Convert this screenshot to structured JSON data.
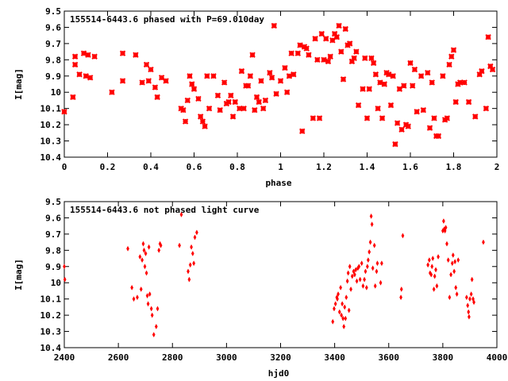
{
  "chart_data": [
    {
      "type": "scatter",
      "title": "155514-6443.6 phased with P=69.010day",
      "xlabel": "phase",
      "ylabel": "I[mag]",
      "xlim": [
        0,
        2
      ],
      "ylim": [
        9.5,
        10.4
      ],
      "y_inverted": true,
      "grid": false,
      "marker_color": "#ff0000",
      "xticks": [
        "0",
        "0.2",
        "0.4",
        "0.6",
        "0.8",
        "1",
        "1.2",
        "1.4",
        "1.6",
        "1.8",
        "2"
      ],
      "yticks": [
        "9.5",
        "9.6",
        "9.7",
        "9.8",
        "9.9",
        "10",
        "10.1",
        "10.2",
        "10.3",
        "10.4"
      ],
      "points": [
        [
          0.0,
          10.12
        ],
        [
          0.04,
          10.03
        ],
        [
          0.05,
          9.78
        ],
        [
          0.05,
          9.83
        ],
        [
          0.07,
          9.89
        ],
        [
          0.09,
          9.76
        ],
        [
          0.1,
          9.9
        ],
        [
          0.11,
          9.77
        ],
        [
          0.12,
          9.91
        ],
        [
          0.14,
          9.78
        ],
        [
          0.22,
          10.0
        ],
        [
          0.27,
          9.76
        ],
        [
          0.27,
          9.93
        ],
        [
          0.33,
          9.77
        ],
        [
          0.36,
          9.94
        ],
        [
          0.38,
          9.83
        ],
        [
          0.39,
          9.93
        ],
        [
          0.4,
          9.86
        ],
        [
          0.42,
          9.97
        ],
        [
          0.43,
          10.03
        ],
        [
          0.45,
          9.91
        ],
        [
          0.47,
          9.93
        ],
        [
          0.54,
          10.1
        ],
        [
          0.55,
          10.11
        ],
        [
          0.56,
          10.18
        ],
        [
          0.57,
          10.05
        ],
        [
          0.58,
          9.9
        ],
        [
          0.59,
          9.95
        ],
        [
          0.6,
          9.98
        ],
        [
          0.62,
          10.04
        ],
        [
          0.63,
          10.15
        ],
        [
          0.64,
          10.18
        ],
        [
          0.65,
          10.21
        ],
        [
          0.66,
          9.9
        ],
        [
          0.67,
          10.1
        ],
        [
          0.69,
          9.9
        ],
        [
          0.71,
          10.02
        ],
        [
          0.72,
          10.11
        ],
        [
          0.74,
          9.94
        ],
        [
          0.75,
          10.07
        ],
        [
          0.76,
          10.06
        ],
        [
          0.77,
          10.02
        ],
        [
          0.78,
          10.15
        ],
        [
          0.79,
          10.06
        ],
        [
          0.81,
          10.1
        ],
        [
          0.82,
          9.87
        ],
        [
          0.83,
          10.1
        ],
        [
          0.84,
          9.96
        ],
        [
          0.85,
          9.96
        ],
        [
          0.86,
          9.9
        ],
        [
          0.87,
          9.77
        ],
        [
          0.88,
          10.11
        ],
        [
          0.89,
          10.03
        ],
        [
          0.9,
          10.06
        ],
        [
          0.91,
          9.93
        ],
        [
          0.92,
          10.1
        ],
        [
          0.93,
          10.05
        ],
        [
          0.95,
          9.88
        ],
        [
          0.96,
          9.91
        ],
        [
          0.97,
          9.59
        ],
        [
          0.98,
          10.01
        ],
        [
          1.0,
          9.93
        ],
        [
          1.02,
          9.85
        ],
        [
          1.03,
          10.0
        ],
        [
          1.04,
          9.9
        ],
        [
          1.05,
          9.76
        ],
        [
          1.06,
          9.89
        ],
        [
          1.08,
          9.76
        ],
        [
          1.09,
          9.71
        ],
        [
          1.1,
          10.24
        ],
        [
          1.11,
          9.72
        ],
        [
          1.12,
          9.73
        ],
        [
          1.13,
          9.77
        ],
        [
          1.15,
          10.16
        ],
        [
          1.16,
          9.67
        ],
        [
          1.17,
          9.8
        ],
        [
          1.18,
          10.16
        ],
        [
          1.19,
          9.64
        ],
        [
          1.2,
          9.8
        ],
        [
          1.21,
          9.67
        ],
        [
          1.22,
          9.81
        ],
        [
          1.23,
          9.78
        ],
        [
          1.24,
          9.68
        ],
        [
          1.25,
          9.64
        ],
        [
          1.26,
          9.66
        ],
        [
          1.27,
          9.59
        ],
        [
          1.28,
          9.75
        ],
        [
          1.29,
          9.92
        ],
        [
          1.3,
          9.61
        ],
        [
          1.31,
          9.71
        ],
        [
          1.32,
          9.7
        ],
        [
          1.33,
          9.81
        ],
        [
          1.34,
          9.79
        ],
        [
          1.35,
          9.75
        ],
        [
          1.36,
          10.08
        ],
        [
          1.38,
          9.98
        ],
        [
          1.39,
          9.79
        ],
        [
          1.4,
          10.16
        ],
        [
          1.41,
          9.98
        ],
        [
          1.42,
          9.79
        ],
        [
          1.43,
          9.82
        ],
        [
          1.44,
          9.89
        ],
        [
          1.45,
          10.1
        ],
        [
          1.46,
          9.94
        ],
        [
          1.47,
          10.16
        ],
        [
          1.48,
          9.95
        ],
        [
          1.49,
          9.88
        ],
        [
          1.5,
          9.89
        ],
        [
          1.51,
          10.08
        ],
        [
          1.52,
          9.9
        ],
        [
          1.53,
          10.32
        ],
        [
          1.54,
          10.19
        ],
        [
          1.55,
          9.98
        ],
        [
          1.56,
          10.23
        ],
        [
          1.57,
          9.96
        ],
        [
          1.58,
          10.2
        ],
        [
          1.59,
          10.21
        ],
        [
          1.6,
          9.82
        ],
        [
          1.61,
          9.96
        ],
        [
          1.62,
          9.86
        ],
        [
          1.63,
          10.12
        ],
        [
          1.65,
          9.9
        ],
        [
          1.66,
          10.11
        ],
        [
          1.68,
          9.88
        ],
        [
          1.69,
          10.22
        ],
        [
          1.7,
          9.94
        ],
        [
          1.71,
          10.16
        ],
        [
          1.72,
          10.27
        ],
        [
          1.73,
          10.27
        ],
        [
          1.75,
          9.9
        ],
        [
          1.76,
          10.17
        ],
        [
          1.77,
          10.16
        ],
        [
          1.78,
          9.83
        ],
        [
          1.79,
          9.78
        ],
        [
          1.8,
          9.74
        ],
        [
          1.81,
          10.06
        ],
        [
          1.82,
          9.95
        ],
        [
          1.83,
          9.94
        ],
        [
          1.85,
          9.94
        ],
        [
          1.87,
          10.06
        ],
        [
          1.9,
          10.15
        ],
        [
          1.92,
          9.89
        ],
        [
          1.93,
          9.87
        ],
        [
          1.95,
          10.1
        ],
        [
          1.96,
          9.66
        ],
        [
          1.97,
          9.84
        ],
        [
          1.98,
          9.86
        ]
      ]
    },
    {
      "type": "scatter",
      "title": "155514-6443.6 not phased light curve",
      "xlabel": "hjd0",
      "ylabel": "I[mag]",
      "xlim": [
        2400,
        4000
      ],
      "ylim": [
        9.5,
        10.4
      ],
      "y_inverted": true,
      "grid": false,
      "marker_color": "#ff0000",
      "xticks": [
        "2400",
        "2600",
        "2800",
        "3000",
        "3200",
        "3400",
        "3600",
        "3800",
        "4000"
      ],
      "yticks": [
        "9.5",
        "9.6",
        "9.7",
        "9.8",
        "9.9",
        "10",
        "10.1",
        "10.2",
        "10.3",
        "10.4"
      ],
      "points": [
        [
          2400,
          9.9
        ],
        [
          2402,
          9.98
        ],
        [
          2635,
          9.79
        ],
        [
          2650,
          10.03
        ],
        [
          2657,
          10.1
        ],
        [
          2670,
          10.09
        ],
        [
          2680,
          9.84
        ],
        [
          2684,
          10.04
        ],
        [
          2688,
          9.86
        ],
        [
          2692,
          9.76
        ],
        [
          2695,
          9.8
        ],
        [
          2698,
          9.9
        ],
        [
          2701,
          9.82
        ],
        [
          2704,
          9.94
        ],
        [
          2707,
          10.08
        ],
        [
          2710,
          10.13
        ],
        [
          2713,
          9.78
        ],
        [
          2716,
          10.07
        ],
        [
          2722,
          10.16
        ],
        [
          2725,
          10.2
        ],
        [
          2731,
          10.32
        ],
        [
          2740,
          10.27
        ],
        [
          2745,
          10.16
        ],
        [
          2750,
          9.8
        ],
        [
          2754,
          9.76
        ],
        [
          2757,
          9.77
        ],
        [
          2826,
          9.77
        ],
        [
          2833,
          9.58
        ],
        [
          2858,
          9.93
        ],
        [
          2862,
          9.98
        ],
        [
          2866,
          9.89
        ],
        [
          2870,
          9.78
        ],
        [
          2875,
          9.82
        ],
        [
          2879,
          9.88
        ],
        [
          2883,
          9.72
        ],
        [
          2890,
          9.69
        ],
        [
          3393,
          10.24
        ],
        [
          3398,
          10.16
        ],
        [
          3403,
          10.13
        ],
        [
          3408,
          10.09
        ],
        [
          3410,
          10.1
        ],
        [
          3413,
          10.07
        ],
        [
          3418,
          10.18
        ],
        [
          3422,
          10.03
        ],
        [
          3425,
          10.2
        ],
        [
          3428,
          10.13
        ],
        [
          3431,
          10.22
        ],
        [
          3434,
          10.27
        ],
        [
          3437,
          10.15
        ],
        [
          3440,
          10.22
        ],
        [
          3443,
          10.09
        ],
        [
          3447,
          9.99
        ],
        [
          3450,
          9.94
        ],
        [
          3453,
          10.17
        ],
        [
          3456,
          9.9
        ],
        [
          3460,
          10.04
        ],
        [
          3465,
          9.96
        ],
        [
          3470,
          9.93
        ],
        [
          3474,
          9.95
        ],
        [
          3478,
          9.92
        ],
        [
          3482,
          9.99
        ],
        [
          3486,
          9.91
        ],
        [
          3490,
          9.9
        ],
        [
          3494,
          9.98
        ],
        [
          3500,
          9.88
        ],
        [
          3505,
          10.02
        ],
        [
          3510,
          9.98
        ],
        [
          3514,
          9.93
        ],
        [
          3518,
          10.03
        ],
        [
          3521,
          9.9
        ],
        [
          3524,
          9.86
        ],
        [
          3528,
          9.81
        ],
        [
          3532,
          9.75
        ],
        [
          3535,
          9.59
        ],
        [
          3538,
          9.64
        ],
        [
          3541,
          9.91
        ],
        [
          3547,
          9.77
        ],
        [
          3550,
          10.02
        ],
        [
          3555,
          9.93
        ],
        [
          3558,
          9.88
        ],
        [
          3570,
          10.0
        ],
        [
          3574,
          9.88
        ],
        [
          3645,
          10.09
        ],
        [
          3647,
          10.04
        ],
        [
          3652,
          9.71
        ],
        [
          3745,
          9.89
        ],
        [
          3750,
          9.86
        ],
        [
          3753,
          9.94
        ],
        [
          3757,
          9.95
        ],
        [
          3760,
          9.9
        ],
        [
          3763,
          9.85
        ],
        [
          3767,
          10.04
        ],
        [
          3770,
          9.96
        ],
        [
          3774,
          9.92
        ],
        [
          3778,
          10.02
        ],
        [
          3783,
          9.84
        ],
        [
          3800,
          9.68
        ],
        [
          3803,
          9.62
        ],
        [
          3805,
          9.67
        ],
        [
          3808,
          9.68
        ],
        [
          3811,
          9.66
        ],
        [
          3815,
          9.76
        ],
        [
          3820,
          9.86
        ],
        [
          3825,
          10.09
        ],
        [
          3830,
          9.95
        ],
        [
          3835,
          9.88
        ],
        [
          3838,
          9.83
        ],
        [
          3842,
          9.93
        ],
        [
          3845,
          9.87
        ],
        [
          3848,
          10.03
        ],
        [
          3852,
          10.07
        ],
        [
          3857,
          9.86
        ],
        [
          3888,
          10.09
        ],
        [
          3892,
          10.14
        ],
        [
          3895,
          10.18
        ],
        [
          3897,
          10.21
        ],
        [
          3900,
          10.1
        ],
        [
          3905,
          10.07
        ],
        [
          3908,
          9.98
        ],
        [
          3912,
          10.1
        ],
        [
          3915,
          10.12
        ],
        [
          3950,
          9.75
        ]
      ]
    }
  ]
}
